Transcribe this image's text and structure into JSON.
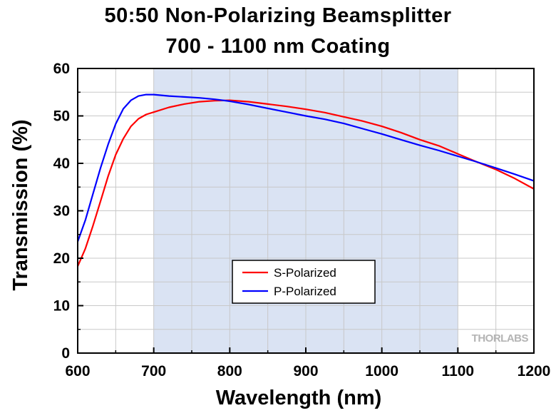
{
  "chart_data": {
    "type": "line",
    "title": "50:50 Non-Polarizing Beamsplitter",
    "subtitle": "700 - 1100 nm Coating",
    "xlabel": "Wavelength (nm)",
    "ylabel": "Transmission (%)",
    "xlim": [
      600,
      1200
    ],
    "ylim": [
      0,
      60
    ],
    "xticks": [
      600,
      700,
      800,
      900,
      1000,
      1100,
      1200
    ],
    "yticks": [
      0,
      10,
      20,
      30,
      40,
      50,
      60
    ],
    "grid": true,
    "shaded_region": {
      "x": [
        700,
        1100
      ],
      "color": "#dae3f3"
    },
    "legend_position": "center-lower",
    "watermark": "THORLABS",
    "series": [
      {
        "name": "S-Polarized",
        "color": "#ff0000",
        "x": [
          600,
          610,
          620,
          630,
          640,
          650,
          660,
          670,
          680,
          690,
          700,
          720,
          740,
          760,
          780,
          800,
          825,
          850,
          875,
          900,
          925,
          950,
          975,
          1000,
          1025,
          1050,
          1075,
          1100,
          1125,
          1150,
          1175,
          1200
        ],
        "y": [
          18.3,
          22.0,
          26.8,
          32.0,
          37.3,
          41.8,
          45.2,
          47.8,
          49.4,
          50.3,
          50.8,
          51.8,
          52.5,
          53.0,
          53.2,
          53.3,
          53.0,
          52.5,
          52.0,
          51.4,
          50.7,
          49.8,
          48.9,
          47.8,
          46.5,
          45.0,
          43.7,
          42.0,
          40.3,
          38.7,
          36.8,
          34.6
        ]
      },
      {
        "name": "P-Polarized",
        "color": "#0000ff",
        "x": [
          600,
          610,
          620,
          630,
          640,
          650,
          660,
          670,
          680,
          690,
          700,
          720,
          740,
          760,
          780,
          800,
          825,
          850,
          875,
          900,
          925,
          950,
          975,
          1000,
          1025,
          1050,
          1075,
          1100,
          1125,
          1150,
          1175,
          1200
        ],
        "y": [
          23.5,
          28.0,
          33.5,
          39.0,
          44.0,
          48.3,
          51.5,
          53.3,
          54.2,
          54.5,
          54.5,
          54.2,
          54.0,
          53.8,
          53.5,
          53.1,
          52.4,
          51.6,
          50.8,
          50.0,
          49.3,
          48.4,
          47.3,
          46.2,
          45.0,
          43.8,
          42.7,
          41.5,
          40.3,
          39.0,
          37.7,
          36.3
        ]
      }
    ]
  }
}
